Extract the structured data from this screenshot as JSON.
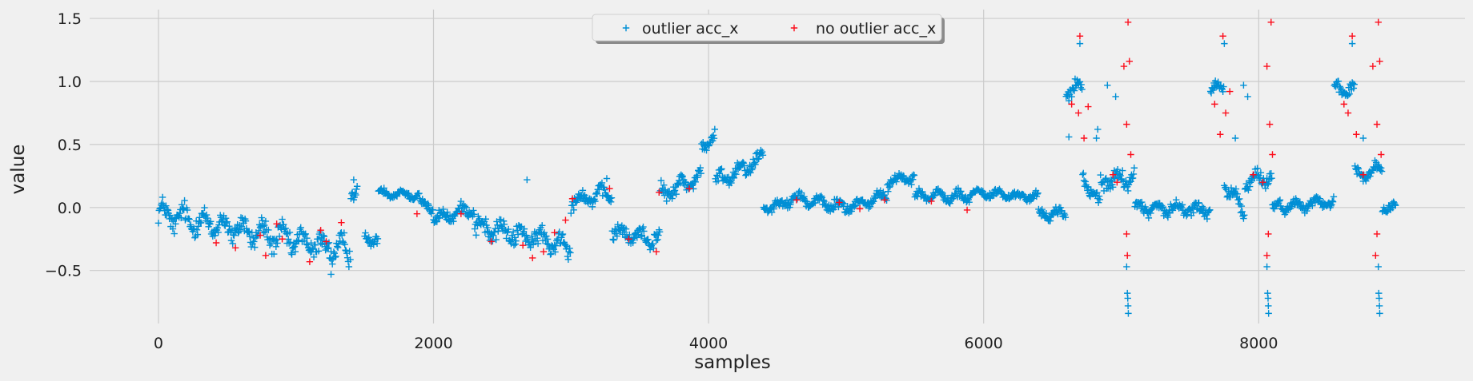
{
  "chart_data": {
    "type": "scatter",
    "marker": "+",
    "xlabel": "samples",
    "ylabel": "value",
    "xlim": [
      -500,
      9500
    ],
    "ylim": [
      -0.92,
      1.57
    ],
    "x_ticks": [
      0,
      2000,
      4000,
      6000,
      8000
    ],
    "y_ticks": [
      -0.5,
      0.0,
      0.5,
      1.0,
      1.5
    ],
    "x_tick_labels": [
      "0",
      "2000",
      "4000",
      "6000",
      "8000"
    ],
    "y_tick_labels": [
      "−0.5",
      "0.0",
      "0.5",
      "1.0",
      "1.5"
    ],
    "grid": true,
    "legend_position": "top-center",
    "segments": [
      [
        0,
        1400,
        -0.05,
        -0.35,
        0.12
      ],
      [
        1400,
        1450,
        0.14,
        0.14,
        0.07
      ],
      [
        1500,
        1600,
        -0.25,
        -0.25,
        0.05
      ],
      [
        1600,
        1900,
        0.12,
        0.1,
        0.04
      ],
      [
        1900,
        2000,
        0.03,
        0.0,
        0.05
      ],
      [
        2000,
        2300,
        -0.1,
        0.0,
        0.06
      ],
      [
        2300,
        3000,
        -0.15,
        -0.3,
        0.1
      ],
      [
        3000,
        3300,
        0.05,
        0.12,
        0.07
      ],
      [
        3300,
        3650,
        -0.2,
        -0.25,
        0.08
      ],
      [
        3650,
        3950,
        0.1,
        0.25,
        0.08
      ],
      [
        3950,
        4050,
        0.45,
        0.6,
        0.06
      ],
      [
        4050,
        4400,
        0.2,
        0.4,
        0.08
      ],
      [
        4400,
        4600,
        0.0,
        0.05,
        0.05
      ],
      [
        4600,
        5000,
        0.08,
        0.0,
        0.06
      ],
      [
        5000,
        5300,
        0.0,
        0.1,
        0.05
      ],
      [
        5300,
        5500,
        0.2,
        0.25,
        0.05
      ],
      [
        5500,
        5900,
        0.1,
        0.08,
        0.05
      ],
      [
        5900,
        6400,
        0.12,
        0.08,
        0.04
      ],
      [
        6400,
        6600,
        -0.05,
        -0.05,
        0.05
      ],
      [
        6600,
        6720,
        0.93,
        0.95,
        0.07
      ],
      [
        6720,
        6850,
        0.25,
        0.0,
        0.08
      ],
      [
        6850,
        7100,
        0.2,
        0.25,
        0.08
      ],
      [
        7100,
        7650,
        0.0,
        -0.02,
        0.06
      ],
      [
        7650,
        7750,
        0.92,
        0.95,
        0.07
      ],
      [
        7750,
        7900,
        0.2,
        -0.05,
        0.08
      ],
      [
        7900,
        8100,
        0.2,
        0.25,
        0.08
      ],
      [
        8100,
        8550,
        0.0,
        0.05,
        0.05
      ],
      [
        8550,
        8700,
        0.93,
        0.95,
        0.07
      ],
      [
        8700,
        8900,
        0.25,
        0.3,
        0.08
      ],
      [
        8900,
        9000,
        0.0,
        0.0,
        0.05
      ]
    ],
    "series": [
      {
        "name": "outlier acc_x",
        "color": "#008fd5"
      },
      {
        "name": "no outlier acc_x",
        "color": "#fc0d1b",
        "points": [
          [
            420,
            -0.28
          ],
          [
            560,
            -0.32
          ],
          [
            740,
            -0.22
          ],
          [
            780,
            -0.38
          ],
          [
            860,
            -0.13
          ],
          [
            900,
            -0.25
          ],
          [
            1100,
            -0.43
          ],
          [
            1180,
            -0.18
          ],
          [
            1220,
            -0.27
          ],
          [
            1330,
            -0.12
          ],
          [
            1880,
            -0.05
          ],
          [
            2200,
            -0.05
          ],
          [
            2420,
            -0.27
          ],
          [
            2650,
            -0.3
          ],
          [
            2720,
            -0.4
          ],
          [
            2800,
            -0.35
          ],
          [
            2880,
            -0.2
          ],
          [
            2960,
            -0.1
          ],
          [
            3010,
            0.07
          ],
          [
            3280,
            0.15
          ],
          [
            3420,
            -0.25
          ],
          [
            3620,
            -0.35
          ],
          [
            3640,
            0.12
          ],
          [
            3860,
            0.15
          ],
          [
            4640,
            0.06
          ],
          [
            4950,
            0.04
          ],
          [
            5100,
            -0.01
          ],
          [
            5280,
            0.06
          ],
          [
            5620,
            0.05
          ],
          [
            5880,
            -0.02
          ],
          [
            6640,
            0.82
          ],
          [
            6690,
            0.75
          ],
          [
            6700,
            1.36
          ],
          [
            6730,
            0.55
          ],
          [
            6760,
            0.8
          ],
          [
            6940,
            0.26
          ],
          [
            6970,
            0.2
          ],
          [
            7020,
            1.12
          ],
          [
            7040,
            0.66
          ],
          [
            7050,
            1.47
          ],
          [
            7060,
            1.16
          ],
          [
            7070,
            0.42
          ],
          [
            7040,
            -0.21
          ],
          [
            7045,
            -0.38
          ],
          [
            7680,
            0.82
          ],
          [
            7720,
            0.58
          ],
          [
            7740,
            1.36
          ],
          [
            7760,
            0.75
          ],
          [
            7790,
            0.92
          ],
          [
            7960,
            0.26
          ],
          [
            8030,
            0.2
          ],
          [
            8060,
            1.12
          ],
          [
            8080,
            0.66
          ],
          [
            8090,
            1.47
          ],
          [
            8100,
            0.42
          ],
          [
            8070,
            -0.21
          ],
          [
            8060,
            -0.38
          ],
          [
            8620,
            0.82
          ],
          [
            8650,
            0.75
          ],
          [
            8680,
            1.36
          ],
          [
            8710,
            0.58
          ],
          [
            8760,
            0.26
          ],
          [
            8830,
            1.12
          ],
          [
            8860,
            0.66
          ],
          [
            8870,
            1.47
          ],
          [
            8880,
            1.16
          ],
          [
            8890,
            0.42
          ],
          [
            8860,
            -0.21
          ],
          [
            8850,
            -0.38
          ]
        ]
      }
    ],
    "extra_outlier_points": [
      [
        1420,
        0.22
      ],
      [
        1255,
        -0.53
      ],
      [
        2680,
        0.22
      ],
      [
        3260,
        0.23
      ],
      [
        3810,
        0.25
      ],
      [
        6620,
        0.56
      ],
      [
        6700,
        1.3
      ],
      [
        6820,
        0.55
      ],
      [
        6830,
        0.62
      ],
      [
        6900,
        0.97
      ],
      [
        6960,
        0.88
      ],
      [
        7040,
        -0.47
      ],
      [
        7045,
        -0.68
      ],
      [
        7048,
        -0.72
      ],
      [
        7050,
        -0.78
      ],
      [
        7052,
        -0.84
      ],
      [
        7750,
        1.3
      ],
      [
        7830,
        0.55
      ],
      [
        7890,
        0.97
      ],
      [
        7920,
        0.88
      ],
      [
        8060,
        -0.47
      ],
      [
        8065,
        -0.68
      ],
      [
        8068,
        -0.72
      ],
      [
        8070,
        -0.78
      ],
      [
        8072,
        -0.84
      ],
      [
        8680,
        1.3
      ],
      [
        8760,
        0.55
      ],
      [
        8870,
        -0.47
      ],
      [
        8873,
        -0.68
      ],
      [
        8876,
        -0.72
      ],
      [
        8878,
        -0.78
      ],
      [
        8880,
        -0.84
      ]
    ]
  }
}
